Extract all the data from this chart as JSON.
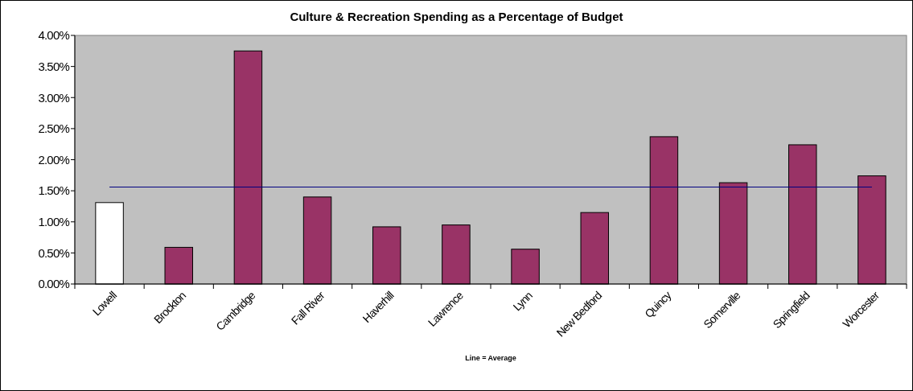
{
  "chart_data": {
    "type": "bar",
    "title": "Culture & Recreation Spending as a Percentage of Budget",
    "categories": [
      "Lowell",
      "Brockton",
      "Cambridge",
      "Fall River",
      "Haverhill",
      "Lawrence",
      "Lynn",
      "New Bedford",
      "Quincy",
      "Somerville",
      "Springfield",
      "Worcester"
    ],
    "values": [
      1.31,
      0.59,
      3.75,
      1.4,
      0.92,
      0.95,
      0.56,
      1.15,
      2.37,
      1.63,
      2.24,
      1.74
    ],
    "colors": [
      "#ffffff",
      "#993366",
      "#993366",
      "#993366",
      "#993366",
      "#993366",
      "#993366",
      "#993366",
      "#993366",
      "#993366",
      "#993366",
      "#993366"
    ],
    "ylim": [
      0,
      4
    ],
    "yticks": [
      {
        "value": 0,
        "label": "0.00%"
      },
      {
        "value": 0.5,
        "label": "0.50%"
      },
      {
        "value": 1,
        "label": "1.00%"
      },
      {
        "value": 1.5,
        "label": "1.50%"
      },
      {
        "value": 2,
        "label": "2.00%"
      },
      {
        "value": 2.5,
        "label": "2.50%"
      },
      {
        "value": 3,
        "label": "3.00%"
      },
      {
        "value": 3.5,
        "label": "3.50%"
      },
      {
        "value": 4,
        "label": "4.00%"
      }
    ],
    "ref_lines": [
      {
        "axis": "y",
        "value": 1.56,
        "color": "#000080"
      }
    ],
    "annotations": [
      "Line = Average"
    ],
    "grid": false
  }
}
